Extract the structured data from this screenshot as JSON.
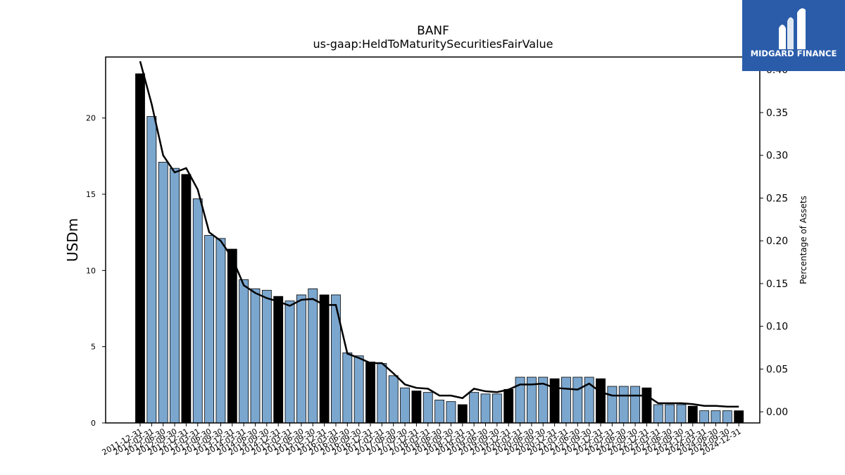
{
  "chart_data": {
    "type": "bar",
    "title": "BANF",
    "subtitle": "us-gaap:HeldToMaturitySecuritiesFairValue",
    "ylabel": "USDm",
    "y2label": "Percentage of Assets",
    "ylim": [
      0,
      24
    ],
    "y2lim": [
      -0.013,
      0.415
    ],
    "yticks": [
      "0",
      "5",
      "10",
      "15",
      "20"
    ],
    "y2ticks": [
      "0.00",
      "0.05",
      "0.10",
      "0.15",
      "0.20",
      "0.25",
      "0.30",
      "0.35",
      "0.40"
    ],
    "colors": {
      "bar": "#7ba7cf",
      "highlight": "#000000",
      "line": "#000000"
    },
    "categories": [
      "2011-12-31",
      "2012-03-31",
      "2012-06-30",
      "2012-09-30",
      "2012-12-31",
      "2013-03-31",
      "2013-06-30",
      "2013-09-30",
      "2013-12-31",
      "2014-03-31",
      "2014-06-30",
      "2014-09-30",
      "2014-12-31",
      "2015-03-31",
      "2015-06-30",
      "2015-09-30",
      "2015-12-31",
      "2016-03-31",
      "2016-06-30",
      "2016-09-30",
      "2016-12-31",
      "2017-03-31",
      "2017-06-30",
      "2017-09-30",
      "2017-12-31",
      "2018-03-31",
      "2018-06-30",
      "2018-09-30",
      "2018-12-31",
      "2019-03-31",
      "2019-06-30",
      "2019-09-30",
      "2019-12-31",
      "2020-03-31",
      "2020-06-30",
      "2020-09-30",
      "2020-12-31",
      "2021-03-31",
      "2021-06-30",
      "2021-09-30",
      "2021-12-31",
      "2022-03-31",
      "2022-06-30",
      "2022-09-30",
      "2022-12-31",
      "2023-03-31",
      "2023-06-30",
      "2023-09-30",
      "2023-12-31",
      "2024-03-31",
      "2024-06-30",
      "2024-09-30",
      "2024-12-31"
    ],
    "series": [
      {
        "values": [
          22.9,
          20.1,
          17.1,
          16.7,
          16.3,
          14.7,
          12.3,
          12.1,
          11.4,
          9.4,
          8.8,
          8.7,
          8.3,
          8.0,
          8.4,
          8.8,
          8.4,
          8.4,
          4.6,
          4.4,
          4.0,
          3.9,
          3.1,
          2.3,
          2.1,
          2.0,
          1.5,
          1.4,
          1.2,
          2.0,
          1.9,
          1.9,
          2.2,
          3.0,
          3.0,
          3.0,
          2.9,
          3.0,
          3.0,
          3.0,
          2.9,
          2.4,
          2.4,
          2.4,
          2.3,
          1.2,
          1.2,
          1.2,
          1.1,
          0.8,
          0.8,
          0.8,
          0.8
        ]
      },
      {
        "type": "line",
        "values": [
          0.41,
          0.36,
          0.3,
          0.28,
          0.285,
          0.26,
          0.21,
          0.2,
          0.18,
          0.148,
          0.139,
          0.133,
          0.129,
          0.124,
          0.131,
          0.132,
          0.125,
          0.125,
          0.068,
          0.063,
          0.057,
          0.057,
          0.045,
          0.032,
          0.028,
          0.027,
          0.019,
          0.019,
          0.016,
          0.027,
          0.024,
          0.023,
          0.026,
          0.032,
          0.032,
          0.033,
          0.028,
          0.027,
          0.026,
          0.033,
          0.023,
          0.019,
          0.019,
          0.019,
          0.019,
          0.01,
          0.01,
          0.01,
          0.009,
          0.007,
          0.007,
          0.006,
          0.006
        ]
      }
    ]
  },
  "logo": {
    "text": "MIDGARD FINANCE"
  }
}
